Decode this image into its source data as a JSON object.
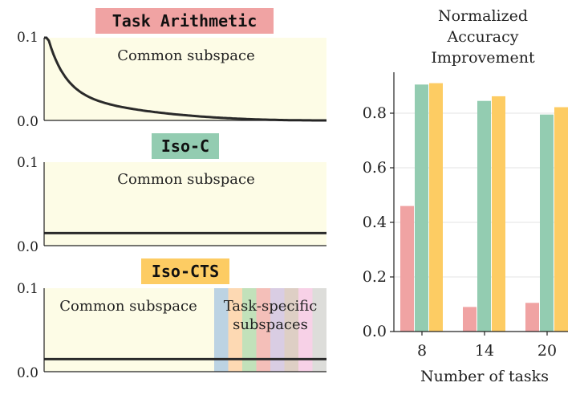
{
  "colors": {
    "panel_fill": "#fdfce6",
    "task_arithmetic": "#f0a3a3",
    "iso_c": "#93ccb1",
    "iso_cts": "#fdcc63",
    "curve": "#2a2a2a",
    "subspace_strips": [
      "#b0cbe2",
      "#fdd2a9",
      "#b7dcb1",
      "#f2b4b0",
      "#d2c4e2",
      "#d8c7be",
      "#f6c9e6",
      "#d7d7d7"
    ]
  },
  "chart_data": [
    {
      "type": "line",
      "title": "Task Arithmetic",
      "ylim": [
        0.0,
        0.1
      ],
      "yticks": [
        "0.0",
        "0.1"
      ],
      "region_label": "Common subspace",
      "curve": "decaying spectrum from 0.1 toward 0.0"
    },
    {
      "type": "line",
      "title": "Iso-C",
      "ylim": [
        0.0,
        0.1
      ],
      "yticks": [
        "0.0",
        "0.1"
      ],
      "region_label": "Common subspace",
      "level": 0.015
    },
    {
      "type": "line",
      "title": "Iso-CTS",
      "ylim": [
        0.0,
        0.1
      ],
      "yticks": [
        "0.0",
        "0.1"
      ],
      "region_label": "Common subspace",
      "specific_label_line1": "Task-specific",
      "specific_label_line2": "subspaces",
      "level": 0.015,
      "specific_count": 8
    },
    {
      "type": "bar",
      "title_lines": [
        "Normalized",
        "Accuracy",
        "Improvement"
      ],
      "xlabel": "Number of tasks",
      "categories": [
        "8",
        "14",
        "20"
      ],
      "ylim": [
        0.0,
        0.95
      ],
      "yticks": [
        "0.0",
        "0.2",
        "0.4",
        "0.6",
        "0.8"
      ],
      "series": [
        {
          "name": "Task Arithmetic",
          "values": [
            0.46,
            0.09,
            0.105
          ]
        },
        {
          "name": "Iso-C",
          "values": [
            0.905,
            0.845,
            0.795
          ]
        },
        {
          "name": "Iso-CTS",
          "values": [
            0.91,
            0.862,
            0.822
          ]
        }
      ]
    }
  ]
}
